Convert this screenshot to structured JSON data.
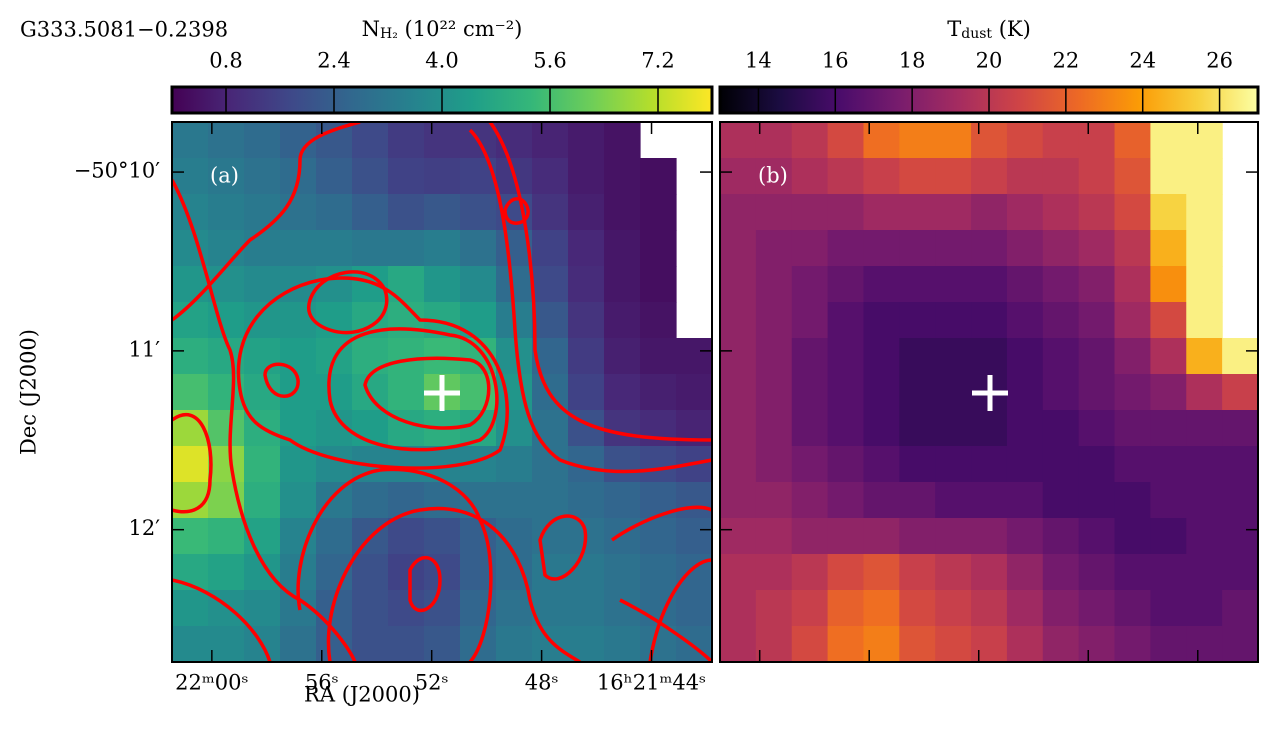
{
  "source_name": "G333.5081−0.2398",
  "chart_data": [
    {
      "type": "heatmap",
      "panel_label": "(a)",
      "colormap": "viridis",
      "colorbar": {
        "symbol": "N",
        "sub": "H₂",
        "unit": " (10²² cm⁻²)",
        "clim": [
          0,
          8
        ],
        "ticks": [
          {
            "value": 0.8,
            "label": "0.8"
          },
          {
            "value": 2.4,
            "label": "2.4"
          },
          {
            "value": 4,
            "label": "4.0"
          },
          {
            "value": 5.6,
            "label": "5.6"
          },
          {
            "value": 7.2,
            "label": "7.2"
          }
        ]
      },
      "xlabel": "RA (J2000)",
      "ylabel": "Dec (J2000)",
      "xlim": [
        61.45,
        41.8
      ],
      "ylim": [
        9.72,
        12.74
      ],
      "xticks": [
        {
          "value": 60,
          "label": "22ᵐ00ˢ"
        },
        {
          "value": 56,
          "label": "56ˢ"
        },
        {
          "value": 52,
          "label": "52ˢ"
        },
        {
          "value": 48,
          "label": "48ˢ"
        },
        {
          "value": 44,
          "label": "16ʰ21ᵐ44ˢ"
        }
      ],
      "yticks": [
        {
          "value": 10,
          "label": "−50°10′"
        },
        {
          "value": 11,
          "label": "11′"
        },
        {
          "value": 12,
          "label": "12′"
        }
      ],
      "z": [
        [
          3.2,
          3.0,
          2.8,
          2.5,
          2.2,
          1.8,
          1.4,
          1.2,
          1.2,
          1.0,
          0.8,
          0.6,
          0.4,
          null,
          null
        ],
        [
          3.4,
          3.2,
          3.0,
          2.8,
          2.4,
          2.0,
          1.6,
          1.5,
          1.6,
          1.3,
          1.0,
          0.6,
          0.4,
          0.3,
          null
        ],
        [
          3.6,
          3.4,
          3.2,
          3.0,
          2.8,
          2.4,
          2.0,
          2.2,
          2.0,
          1.8,
          1.2,
          0.7,
          0.4,
          0.3,
          null
        ],
        [
          3.8,
          3.6,
          3.4,
          3.4,
          3.4,
          3.2,
          3.2,
          3.4,
          3.0,
          2.4,
          1.6,
          0.9,
          0.5,
          0.3,
          null
        ],
        [
          4.2,
          4.0,
          3.8,
          3.8,
          4.0,
          4.4,
          4.8,
          4.2,
          3.8,
          2.8,
          1.8,
          1.0,
          0.5,
          0.3,
          null
        ],
        [
          4.6,
          4.4,
          4.2,
          4.2,
          4.4,
          4.8,
          5.0,
          4.8,
          4.4,
          3.4,
          2.2,
          1.2,
          0.6,
          0.4,
          null
        ],
        [
          5.0,
          4.8,
          4.6,
          4.4,
          4.6,
          5.0,
          5.2,
          5.4,
          5.2,
          4.0,
          2.6,
          1.4,
          0.7,
          0.5,
          0.5
        ],
        [
          5.6,
          5.2,
          4.8,
          4.4,
          4.4,
          4.8,
          5.2,
          6.0,
          5.6,
          4.2,
          2.8,
          1.6,
          0.9,
          0.7,
          0.6
        ],
        [
          6.8,
          5.8,
          5.0,
          4.4,
          4.2,
          4.4,
          4.8,
          5.0,
          4.8,
          4.0,
          3.0,
          2.0,
          1.2,
          1.0,
          0.8
        ],
        [
          7.6,
          6.6,
          5.2,
          4.2,
          3.8,
          3.6,
          3.6,
          3.6,
          3.6,
          3.4,
          3.0,
          2.6,
          2.0,
          1.8,
          1.6
        ],
        [
          6.8,
          6.4,
          5.0,
          4.0,
          3.2,
          2.8,
          2.6,
          2.8,
          3.0,
          3.0,
          3.0,
          2.8,
          2.6,
          2.4,
          2.2
        ],
        [
          5.4,
          5.2,
          4.6,
          3.6,
          2.8,
          2.2,
          1.8,
          2.0,
          2.4,
          2.8,
          3.0,
          3.0,
          2.8,
          2.6,
          2.4
        ],
        [
          4.8,
          4.6,
          4.2,
          3.4,
          2.6,
          2.0,
          1.6,
          1.8,
          2.4,
          2.8,
          3.2,
          3.2,
          3.0,
          2.8,
          2.6
        ],
        [
          4.2,
          4.0,
          3.8,
          3.2,
          2.4,
          2.0,
          1.8,
          2.0,
          2.6,
          3.0,
          3.2,
          3.2,
          3.0,
          2.8,
          2.6
        ],
        [
          3.8,
          3.8,
          3.6,
          3.0,
          2.4,
          2.0,
          2.0,
          2.2,
          2.8,
          3.2,
          3.4,
          3.4,
          3.2,
          3.0,
          2.8
        ]
      ]
    },
    {
      "type": "heatmap",
      "panel_label": "(b)",
      "colormap": "inferno",
      "colorbar": {
        "symbol": "T",
        "sub": "dust",
        "unit": " (K)",
        "clim": [
          13,
          27
        ],
        "ticks": [
          14,
          16,
          18,
          20,
          22,
          24,
          26
        ]
      },
      "z": [
        [
          19.5,
          19.5,
          20,
          21,
          22.5,
          23,
          23,
          21.5,
          21,
          20.5,
          20.5,
          22,
          26.5,
          26.5,
          null
        ],
        [
          19,
          19,
          19.5,
          20,
          20.5,
          21,
          21,
          20.5,
          20,
          20,
          20.5,
          21.5,
          26.5,
          26.5,
          null
        ],
        [
          18.5,
          18.5,
          18.5,
          18.5,
          19,
          19,
          19,
          18.5,
          19,
          19.5,
          20,
          21,
          25.5,
          26.5,
          null
        ],
        [
          18.5,
          18,
          18,
          17.5,
          17.5,
          17.5,
          17.5,
          17.5,
          18,
          18.5,
          19,
          20,
          24.5,
          26.5,
          null
        ],
        [
          18.5,
          18,
          17.5,
          17,
          16.5,
          16.5,
          16.5,
          16.5,
          17,
          17.5,
          18,
          19.5,
          23.5,
          26.5,
          null
        ],
        [
          18.5,
          18,
          17.5,
          16.5,
          16,
          16,
          16,
          16,
          16.5,
          17,
          17.5,
          19,
          21,
          26.5,
          null
        ],
        [
          18.5,
          18,
          17,
          16.5,
          16,
          15.5,
          15.5,
          15.5,
          16,
          16.5,
          17,
          18,
          19.5,
          24.5,
          26.5
        ],
        [
          18.5,
          18,
          17,
          16.5,
          16,
          15.5,
          15.5,
          15.5,
          16,
          16.5,
          17,
          17.5,
          18,
          19.5,
          20.5
        ],
        [
          18.5,
          18,
          17,
          16.5,
          16,
          15.5,
          15.5,
          15.5,
          16,
          16,
          16.5,
          17,
          17,
          17,
          17
        ],
        [
          18.5,
          18,
          17.5,
          17,
          16.5,
          16,
          16,
          16,
          16,
          16,
          16,
          16.5,
          16.5,
          16.5,
          16.5
        ],
        [
          18.5,
          18.5,
          18,
          17.5,
          17,
          17,
          16.5,
          16.5,
          16.5,
          16,
          16,
          16,
          16.5,
          16.5,
          16.5
        ],
        [
          19,
          19,
          18.5,
          18.5,
          18.5,
          18,
          18,
          18,
          17.5,
          17,
          16.5,
          16,
          16,
          16.5,
          16.5
        ],
        [
          19.5,
          19.5,
          20,
          21,
          21.5,
          20.5,
          20,
          19.5,
          18.5,
          17.5,
          17,
          16.5,
          16.5,
          16.5,
          16.5
        ],
        [
          19.5,
          20,
          20.5,
          22,
          22.5,
          21,
          20.5,
          20,
          19,
          18,
          17.5,
          17,
          16.5,
          16.5,
          17
        ],
        [
          19.5,
          20,
          21,
          22.5,
          23,
          21.5,
          21,
          20.5,
          19.5,
          18.5,
          18,
          17.5,
          17,
          17,
          17
        ]
      ]
    }
  ]
}
